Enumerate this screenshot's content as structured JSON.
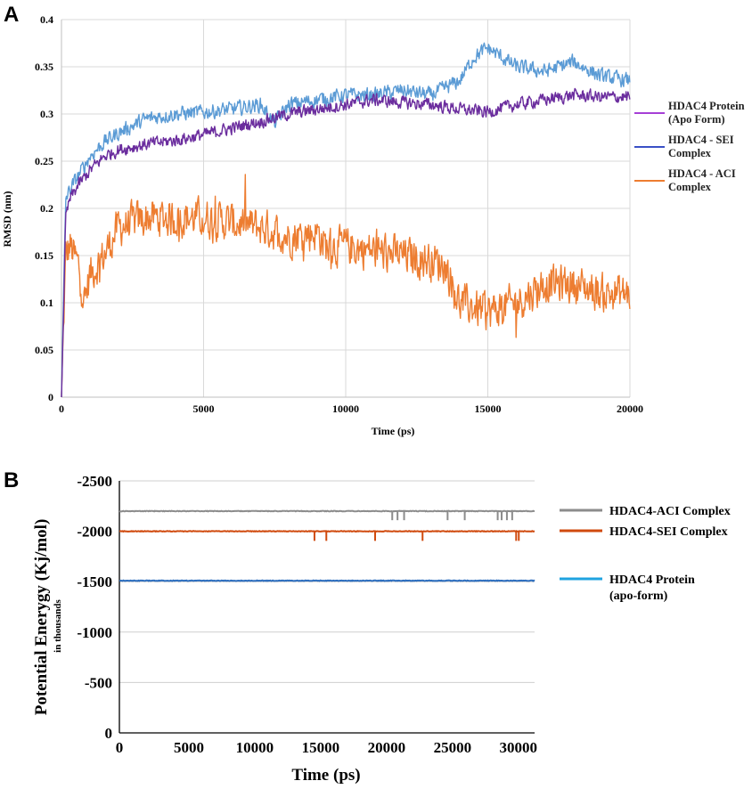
{
  "chart_data": [
    {
      "panel": "A",
      "type": "line",
      "xlabel": "Time (ps)",
      "ylabel": "RMSD (nm)",
      "xlim": [
        0,
        20000
      ],
      "ylim": [
        0,
        0.4
      ],
      "xticks": [
        "0",
        "5000",
        "10000",
        "15000",
        "20000"
      ],
      "yticks": [
        "0",
        "0.05",
        "0.1",
        "0.15",
        "0.2",
        "0.25",
        "0.3",
        "0.35",
        "0.4"
      ],
      "grid": true,
      "legend_position": "right",
      "series": [
        {
          "name": "HDAC4 Protein (Apo Form)",
          "legend_lines": [
            "HDAC4 Protein",
            "(Apo Form)"
          ],
          "legend_color": "#A63FD6",
          "color": "#6B2D9E",
          "x": [
            0,
            150,
            300,
            600,
            1000,
            1500,
            2000,
            3000,
            4000,
            5000,
            6000,
            7000,
            8000,
            9000,
            10000,
            11000,
            12000,
            13000,
            14000,
            15000,
            16000,
            17000,
            18000,
            19000,
            20000
          ],
          "y": [
            0,
            0.19,
            0.21,
            0.225,
            0.24,
            0.255,
            0.262,
            0.268,
            0.272,
            0.278,
            0.285,
            0.292,
            0.3,
            0.305,
            0.31,
            0.315,
            0.312,
            0.31,
            0.305,
            0.302,
            0.31,
            0.315,
            0.32,
            0.318,
            0.318
          ]
        },
        {
          "name": "HDAC4 - SEI Complex",
          "legend_lines": [
            "HDAC4 - SEI",
            "Complex"
          ],
          "legend_color": "#3A50C6",
          "color": "#5B9BD5",
          "x": [
            0,
            150,
            300,
            600,
            1000,
            1500,
            2000,
            3000,
            4000,
            5000,
            6000,
            7000,
            7500,
            8000,
            9000,
            10000,
            11000,
            12000,
            13000,
            14000,
            14500,
            15000,
            16000,
            17000,
            18000,
            19000,
            20000
          ],
          "y": [
            0,
            0.21,
            0.22,
            0.235,
            0.255,
            0.27,
            0.28,
            0.295,
            0.3,
            0.302,
            0.305,
            0.31,
            0.29,
            0.31,
            0.315,
            0.32,
            0.32,
            0.325,
            0.32,
            0.335,
            0.36,
            0.37,
            0.35,
            0.345,
            0.355,
            0.34,
            0.335
          ]
        },
        {
          "name": "HDAC4 - ACI Complex",
          "legend_lines": [
            "HDAC4 - ACI",
            "Complex"
          ],
          "legend_color": "#ED7D31",
          "color": "#ED7D31",
          "x": [
            0,
            150,
            300,
            600,
            800,
            1000,
            1500,
            2000,
            3000,
            4000,
            5000,
            6000,
            7000,
            8000,
            9000,
            9300,
            10000,
            11000,
            12000,
            13000,
            13500,
            14000,
            15000,
            16000,
            17000,
            18000,
            19000,
            20000
          ],
          "y": [
            0,
            0.15,
            0.16,
            0.14,
            0.1,
            0.13,
            0.15,
            0.18,
            0.19,
            0.19,
            0.19,
            0.185,
            0.18,
            0.17,
            0.175,
            0.16,
            0.16,
            0.155,
            0.15,
            0.145,
            0.14,
            0.1,
            0.09,
            0.1,
            0.12,
            0.12,
            0.11,
            0.11
          ]
        }
      ]
    },
    {
      "panel": "B",
      "type": "line",
      "xlabel": "Time (ps)",
      "ylabel": "Potential Enerygy (Kj/mol)",
      "ylabel_sub": "in thousands",
      "xlim": [
        0,
        31500
      ],
      "ylim": [
        0,
        -2500
      ],
      "xticks": [
        "0",
        "5000",
        "10000",
        "15000",
        "20000",
        "25000",
        "30000"
      ],
      "yticks": [
        "0",
        "-500",
        "-1000",
        "-1500",
        "-2000",
        "-2500"
      ],
      "grid": true,
      "legend_position": "right",
      "series": [
        {
          "name": "HDAC4-ACI Complex",
          "legend_lines": [
            "HDAC4-ACI Complex"
          ],
          "color": "#8C8C8C",
          "value": -2200,
          "spikes": [
            [
              20700,
              -2110
            ],
            [
              21100,
              -2110
            ],
            [
              21600,
              -2110
            ],
            [
              24900,
              -2110
            ],
            [
              26200,
              -2110
            ],
            [
              28700,
              -2110
            ],
            [
              29000,
              -2110
            ],
            [
              29400,
              -2110
            ],
            [
              29800,
              -2110
            ]
          ]
        },
        {
          "name": "HDAC4-SEI Complex",
          "legend_lines": [
            "HDAC4-SEI Complex"
          ],
          "color": "#D04A0E",
          "value": -2000,
          "spikes": [
            [
              14800,
              -1905
            ],
            [
              15700,
              -1905
            ],
            [
              19400,
              -1905
            ],
            [
              23000,
              -1905
            ],
            [
              30100,
              -1905
            ],
            [
              30300,
              -1905
            ]
          ]
        },
        {
          "name": "HDAC4 Protein (apo-form)",
          "legend_lines": [
            "HDAC4 Protein",
            "(apo-form)"
          ],
          "color": "#2E6FBF",
          "legend_color": "#1FA3E0",
          "value": -1510,
          "spikes": []
        }
      ]
    }
  ],
  "panels": {
    "A": "A",
    "B": "B"
  }
}
